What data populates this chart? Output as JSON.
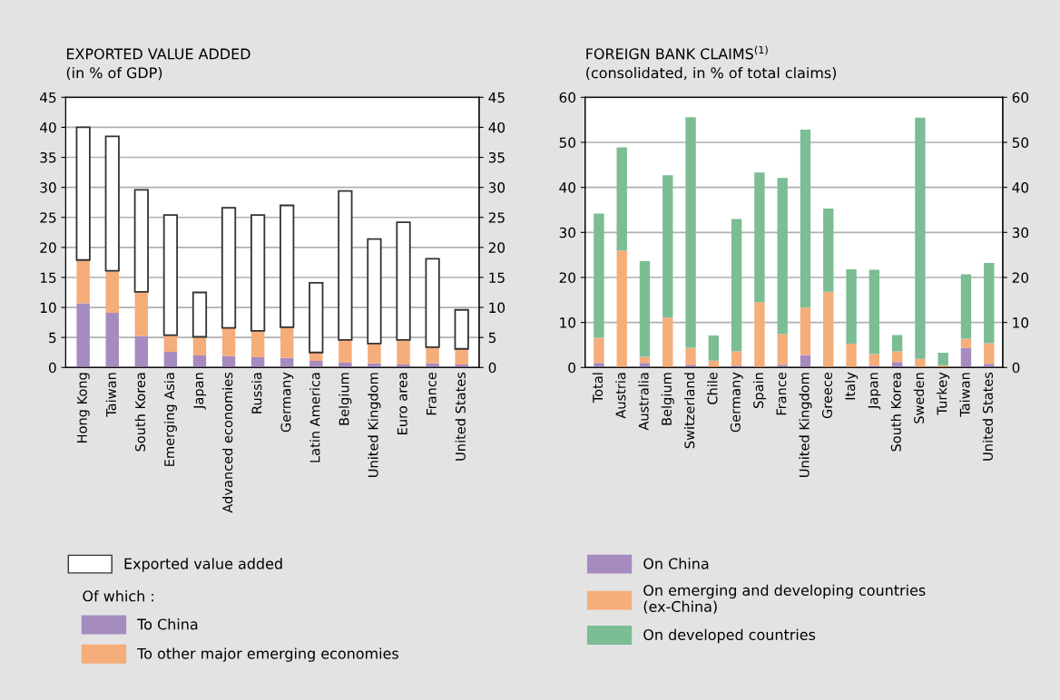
{
  "chart_data": [
    {
      "type": "bar",
      "title": "EXPORTED VALUE ADDED",
      "subtitle": "(in % of GDP)",
      "stacked": true,
      "grid": "y",
      "legend": "bottom",
      "legend_title": "Of which :",
      "categories": [
        "Hong Kong",
        "Taiwan",
        "South Korea",
        "Emerging Asia",
        "Japan",
        "Advanced economies",
        "Russia",
        "Germany",
        "Latin America",
        "Belgium",
        "United Kingdom",
        "Euro area",
        "France",
        "United States"
      ],
      "ylim": [
        0,
        45
      ],
      "yticks": [
        0,
        5,
        10,
        15,
        20,
        25,
        30,
        35,
        40,
        45
      ],
      "y2lim": [
        0,
        45
      ],
      "y2ticks": [
        0,
        5,
        10,
        15,
        20,
        25,
        30,
        35,
        40,
        45
      ],
      "series": [
        {
          "name": "To China",
          "color": "#a68bc1",
          "values": [
            10.7,
            9.1,
            5.2,
            2.6,
            2.0,
            1.9,
            1.7,
            1.6,
            1.1,
            0.8,
            0.7,
            0.5,
            0.7,
            0.5
          ]
        },
        {
          "name": "To other major emerging economies",
          "color": "#f5ad7a",
          "values": [
            7.2,
            7.0,
            7.4,
            2.8,
            3.1,
            4.7,
            4.4,
            5.1,
            1.4,
            3.8,
            3.3,
            4.1,
            2.7,
            2.6
          ]
        },
        {
          "name": "Exported value added",
          "color": "#ffffff",
          "values": [
            22.1,
            22.4,
            17.0,
            20.0,
            7.4,
            20.0,
            19.3,
            20.3,
            11.6,
            24.8,
            17.4,
            19.6,
            14.7,
            6.5
          ]
        }
      ]
    },
    {
      "type": "bar",
      "title": "FOREIGN BANK CLAIMS$^{(1)}$",
      "subtitle": "(consolidated, in % of total claims)",
      "stacked": true,
      "grid": "y",
      "legend": "bottom",
      "categories": [
        "Total",
        "Austria",
        "Australia",
        "Belgium",
        "Switzerland",
        "Chile",
        "Germany",
        "Spain",
        "France",
        "United Kingdom",
        "Greece",
        "Italy",
        "Japan",
        "South Korea",
        "Sweden",
        "Turkey",
        "Taiwan",
        "United States"
      ],
      "ylim": [
        0,
        60
      ],
      "yticks": [
        0,
        10,
        20,
        30,
        40,
        50,
        60
      ],
      "y2lim": [
        0,
        60
      ],
      "y2ticks": [
        0,
        10,
        20,
        30,
        40,
        50,
        60
      ],
      "series": [
        {
          "name": "On China",
          "color": "#a68bc1",
          "values": [
            1.0,
            null,
            1.0,
            null,
            0.6,
            null,
            0.4,
            null,
            0.6,
            2.8,
            null,
            null,
            0.4,
            1.2,
            null,
            null,
            4.4,
            0.8
          ]
        },
        {
          "name": "On emerging and developing countries\n(ex-China)",
          "color": "#f5ad7a",
          "values": [
            5.6,
            26.0,
            1.4,
            11.1,
            3.8,
            1.5,
            3.2,
            14.5,
            6.8,
            10.5,
            16.8,
            5.3,
            2.6,
            2.4,
            1.9,
            0.5,
            2.0,
            4.6
          ]
        },
        {
          "name": "On developed countries",
          "color": "#7bbd94",
          "values": [
            27.6,
            22.9,
            21.2,
            31.6,
            51.2,
            5.6,
            29.4,
            28.8,
            34.7,
            39.5,
            18.5,
            16.5,
            18.7,
            3.6,
            53.6,
            2.8,
            14.3,
            17.8
          ]
        }
      ]
    }
  ]
}
